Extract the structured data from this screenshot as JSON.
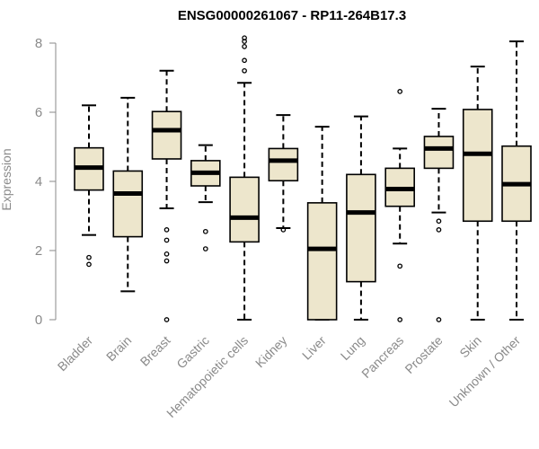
{
  "chart_data": {
    "type": "boxplot",
    "title": "ENSG00000261067 - RP11-264B17.3",
    "xlabel": "",
    "ylabel": "Expression",
    "ylim": [
      0,
      8
    ],
    "yticks": [
      0,
      2,
      4,
      6,
      8
    ],
    "colors": {
      "box_fill": "#ede6cc",
      "box_stroke": "#000000",
      "axis": "#8a8a8a",
      "text": "#8a8a8a"
    },
    "categories": [
      "Bladder",
      "Brain",
      "Breast",
      "Gastric",
      "Hematopoietic cells",
      "Kidney",
      "Liver",
      "Lung",
      "Pancreas",
      "Prostate",
      "Skin",
      "Unknown / Other"
    ],
    "boxes": [
      {
        "name": "Bladder",
        "whisker_low": 2.45,
        "q1": 3.75,
        "median": 4.4,
        "q3": 4.97,
        "whisker_high": 6.2,
        "outliers": [
          1.6,
          1.8
        ]
      },
      {
        "name": "Brain",
        "whisker_low": 0.82,
        "q1": 2.4,
        "median": 3.65,
        "q3": 4.3,
        "whisker_high": 6.42,
        "outliers": []
      },
      {
        "name": "Breast",
        "whisker_low": 3.22,
        "q1": 4.65,
        "median": 5.48,
        "q3": 6.02,
        "whisker_high": 7.2,
        "outliers": [
          0.0,
          1.7,
          1.9,
          2.3,
          2.6
        ]
      },
      {
        "name": "Gastric",
        "whisker_low": 3.4,
        "q1": 3.87,
        "median": 4.25,
        "q3": 4.6,
        "whisker_high": 5.05,
        "outliers": [
          2.05,
          2.55
        ]
      },
      {
        "name": "Hematopoietic cells",
        "whisker_low": 0.0,
        "q1": 2.25,
        "median": 2.95,
        "q3": 4.12,
        "whisker_high": 6.85,
        "outliers": [
          7.2,
          7.5,
          7.9,
          8.05,
          8.15
        ]
      },
      {
        "name": "Kidney",
        "whisker_low": 2.65,
        "q1": 4.02,
        "median": 4.6,
        "q3": 4.95,
        "whisker_high": 5.92,
        "outliers": [
          2.6
        ]
      },
      {
        "name": "Liver",
        "whisker_low": 0.0,
        "q1": 0.0,
        "median": 2.05,
        "q3": 3.38,
        "whisker_high": 5.58,
        "outliers": []
      },
      {
        "name": "Lung",
        "whisker_low": 0.0,
        "q1": 1.1,
        "median": 3.1,
        "q3": 4.2,
        "whisker_high": 5.88,
        "outliers": []
      },
      {
        "name": "Pancreas",
        "whisker_low": 2.2,
        "q1": 3.28,
        "median": 3.78,
        "q3": 4.38,
        "whisker_high": 4.95,
        "outliers": [
          0.0,
          1.55,
          6.6
        ]
      },
      {
        "name": "Prostate",
        "whisker_low": 3.1,
        "q1": 4.38,
        "median": 4.95,
        "q3": 5.3,
        "whisker_high": 6.1,
        "outliers": [
          0.0,
          2.6,
          2.85
        ]
      },
      {
        "name": "Skin",
        "whisker_low": 0.0,
        "q1": 2.85,
        "median": 4.8,
        "q3": 6.08,
        "whisker_high": 7.32,
        "outliers": []
      },
      {
        "name": "Unknown / Other",
        "whisker_low": 0.0,
        "q1": 2.85,
        "median": 3.92,
        "q3": 5.02,
        "whisker_high": 8.05,
        "outliers": []
      }
    ]
  }
}
